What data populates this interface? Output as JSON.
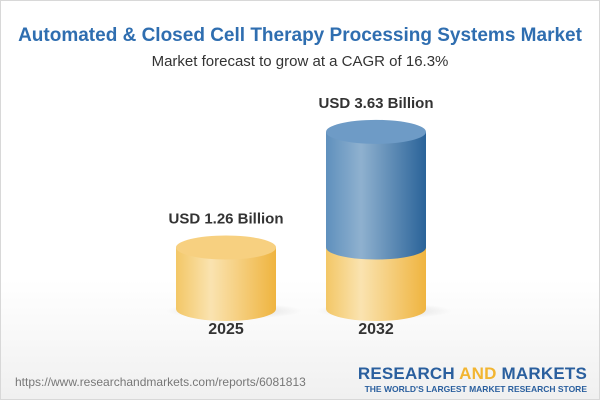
{
  "title": "Automated & Closed Cell Therapy Processing Systems Market",
  "subtitle": "Market forecast to grow at a CAGR of 16.3%",
  "chart_data": {
    "type": "bar",
    "style": "3d-cylinder",
    "categories": [
      "2025",
      "2032"
    ],
    "values": [
      1.26,
      3.63
    ],
    "data_labels": [
      "USD 1.26 Billion",
      "USD 3.63 Billion"
    ],
    "unit": "USD Billion",
    "cagr": "16.3%",
    "colors": {
      "base": "#f2c15a",
      "growth": "#4a80b4"
    },
    "grid": false
  },
  "footer": {
    "url": "https://www.researchandmarkets.com/reports/6081813",
    "logo_part1": "RESEARCH ",
    "logo_part2": "AND",
    "logo_part3": " MARKETS",
    "tagline": "THE WORLD'S LARGEST MARKET RESEARCH STORE"
  }
}
